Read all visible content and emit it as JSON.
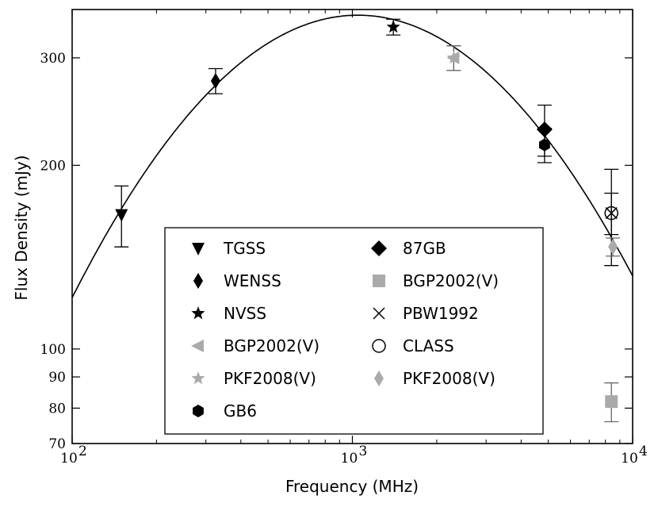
{
  "chart_data": {
    "type": "scatter",
    "xlabel": "Frequency (MHz)",
    "ylabel": "Flux Density (mJy)",
    "xscale": "log",
    "yscale": "log",
    "xlim": [
      100,
      10000
    ],
    "ylim": [
      70,
      360
    ],
    "x_ticks": [
      {
        "value": 100,
        "mantissa": "10",
        "exp": "2"
      },
      {
        "value": 1000,
        "mantissa": "10",
        "exp": "3"
      },
      {
        "value": 10000,
        "mantissa": "10",
        "exp": "4"
      }
    ],
    "y_ticks": [
      {
        "value": 70,
        "label": "70"
      },
      {
        "value": 80,
        "label": "80"
      },
      {
        "value": 90,
        "label": "90"
      },
      {
        "value": 100,
        "label": "100"
      },
      {
        "value": 200,
        "label": "200"
      },
      {
        "value": 300,
        "label": "300"
      }
    ],
    "fit_curve": {
      "log_peak_frequency": 3.02,
      "log_peak_flux": 2.547,
      "curvature": -0.445
    },
    "series": [
      {
        "name": "TGSS",
        "marker": "triangle-down",
        "color": "#000000",
        "col": 0,
        "points": [
          {
            "x": 150,
            "y": 166,
            "err": 19
          }
        ]
      },
      {
        "name": "WENSS",
        "marker": "thin-diamond",
        "color": "#000000",
        "col": 0,
        "points": [
          {
            "x": 325,
            "y": 275,
            "err": 13
          }
        ]
      },
      {
        "name": "NVSS",
        "marker": "star",
        "color": "#000000",
        "col": 0,
        "points": [
          {
            "x": 1400,
            "y": 337,
            "err": 10
          }
        ]
      },
      {
        "name": "BGP2002(V)",
        "marker": "triangle-left",
        "color": "#aaaaaa",
        "col": 0,
        "points": [
          {
            "x": 2300,
            "y": 300,
            "err": 14
          }
        ]
      },
      {
        "name": "PKF2008(V)",
        "marker": "star",
        "color": "#aaaaaa",
        "col": 0,
        "points": [
          {
            "x": 2300,
            "y": 300,
            "err": 14
          }
        ]
      },
      {
        "name": "GB6",
        "marker": "hexagon",
        "color": "#000000",
        "col": 0,
        "points": [
          {
            "x": 4850,
            "y": 216,
            "err": 14
          }
        ]
      },
      {
        "name": "87GB",
        "marker": "diamond",
        "color": "#000000",
        "col": 1,
        "points": [
          {
            "x": 4850,
            "y": 229,
            "err": 22
          }
        ]
      },
      {
        "name": "BGP2002(V)",
        "marker": "square",
        "color": "#aaaaaa",
        "col": 1,
        "points": [
          {
            "x": 8400,
            "y": 82,
            "err": 6
          }
        ]
      },
      {
        "name": "PBW1992",
        "marker": "x",
        "color": "#000000",
        "col": 1,
        "points": [
          {
            "x": 8400,
            "y": 167,
            "err": 30
          }
        ]
      },
      {
        "name": "CLASS",
        "marker": "circle-open",
        "color": "#000000",
        "col": 1,
        "points": [
          {
            "x": 8400,
            "y": 167,
            "err": 13
          }
        ]
      },
      {
        "name": "PKF2008(V)",
        "marker": "thin-diamond",
        "color": "#aaaaaa",
        "col": 1,
        "points": [
          {
            "x": 8500,
            "y": 147,
            "err": 5
          }
        ]
      }
    ],
    "legend": {
      "placement": "lower-center",
      "columns": 2
    },
    "grid": false
  }
}
